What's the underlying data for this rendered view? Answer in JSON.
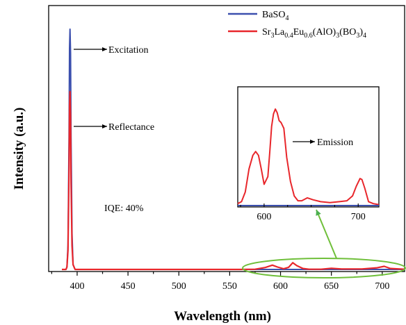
{
  "chart_data": {
    "type": "line",
    "title": "",
    "xlabel": "Wavelength (nm)",
    "ylabel": "Intensity (a.u.)",
    "xlim": [
      372,
      722
    ],
    "ylim": [
      0,
      1.02
    ],
    "x_ticks": [
      400,
      450,
      500,
      550,
      600,
      650,
      700
    ],
    "x_tick_labels": [
      "400",
      "450",
      "500",
      "550",
      "600",
      "650",
      "700"
    ],
    "grid": false,
    "legend": {
      "placement": "top-right",
      "entries": [
        {
          "label": "BaSO",
          "sub": "4",
          "color": "#3b4fae"
        },
        {
          "label_parts": [
            {
              "t": "Sr",
              "s": false
            },
            {
              "t": "3",
              "s": true
            },
            {
              "t": "La",
              "s": false
            },
            {
              "t": "0.4",
              "s": true
            },
            {
              "t": "Eu",
              "s": false
            },
            {
              "t": "0.6",
              "s": true
            },
            {
              "t": "(AlO)",
              "s": false
            },
            {
              "t": "3",
              "s": true
            },
            {
              "t": "(BO",
              "s": false
            },
            {
              "t": "3",
              "s": true
            },
            {
              "t": ")",
              "s": false
            },
            {
              "t": "4",
              "s": true
            }
          ],
          "color": "#e8262b"
        }
      ]
    },
    "series": [
      {
        "color": "#3b4fae",
        "x": [
          385,
          389,
          390,
          391,
          392,
          392.5,
          393,
          393.5,
          394,
          395,
          396,
          398,
          722
        ],
        "y": [
          0,
          0,
          0.01,
          0.1,
          0.55,
          0.92,
          1.0,
          0.9,
          0.55,
          0.15,
          0.02,
          0,
          0
        ]
      },
      {
        "color": "#e8262b",
        "x": [
          385,
          389,
          390,
          391,
          392,
          392.5,
          393,
          393.5,
          394,
          395,
          396,
          398,
          560,
          575,
          585,
          592,
          597,
          603,
          608,
          612,
          616,
          622,
          628,
          640,
          650,
          660,
          680,
          695,
          702,
          708,
          722
        ],
        "y": [
          0,
          0,
          0.01,
          0.08,
          0.42,
          0.68,
          0.74,
          0.64,
          0.36,
          0.1,
          0.02,
          0,
          0,
          0.001,
          0.008,
          0.018,
          0.01,
          0.003,
          0.009,
          0.028,
          0.016,
          0.004,
          0.001,
          0.001,
          0.005,
          0.002,
          0.002,
          0.007,
          0.013,
          0.004,
          0.001
        ]
      }
    ],
    "annotations": [
      {
        "text": "Excitation"
      },
      {
        "text": "Reflectance"
      },
      {
        "text": "IQE: 40%"
      }
    ],
    "inset": {
      "type": "line",
      "xlim": [
        572,
        722
      ],
      "x_ticks": [
        600,
        700
      ],
      "x_tick_labels": [
        "600",
        "700"
      ],
      "annotation": "Emission",
      "series": [
        {
          "color": "#e8262b",
          "x": [
            572,
            576,
            580,
            584,
            588,
            591,
            594,
            597,
            600,
            604,
            606,
            608,
            610,
            612,
            614,
            616,
            618,
            621,
            624,
            628,
            632,
            636,
            640,
            646,
            652,
            660,
            670,
            680,
            688,
            694,
            698,
            702,
            704,
            707,
            711,
            716,
            722
          ],
          "y": [
            0.02,
            0.04,
            0.14,
            0.38,
            0.52,
            0.56,
            0.52,
            0.38,
            0.22,
            0.3,
            0.55,
            0.82,
            0.95,
            1.0,
            0.96,
            0.88,
            0.86,
            0.8,
            0.5,
            0.25,
            0.1,
            0.05,
            0.05,
            0.08,
            0.06,
            0.04,
            0.03,
            0.04,
            0.05,
            0.1,
            0.2,
            0.28,
            0.27,
            0.18,
            0.04,
            0.02,
            0.01
          ]
        },
        {
          "color": "#3b4fae",
          "x": [
            572,
            722
          ],
          "y": [
            0,
            0
          ]
        }
      ]
    }
  }
}
